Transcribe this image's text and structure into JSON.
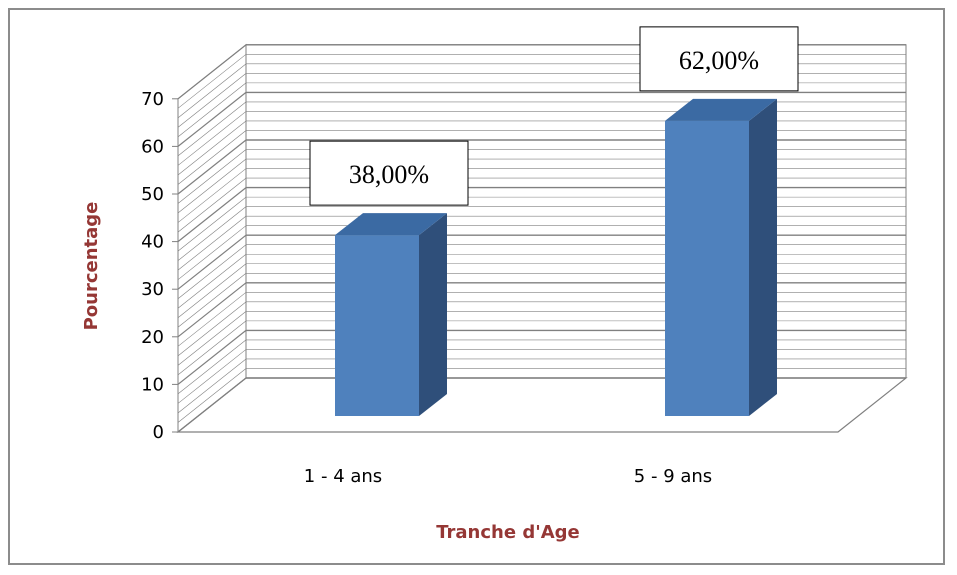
{
  "chart_data": {
    "type": "bar",
    "categories": [
      "1 - 4 ans",
      "5 - 9 ans"
    ],
    "values": [
      38,
      62
    ],
    "data_labels": [
      "38,00%",
      "62,00%"
    ],
    "xlabel": "Tranche d'Age",
    "ylabel": "Pourcentage",
    "ylim": [
      0,
      70
    ],
    "yticks": [
      0,
      10,
      20,
      30,
      40,
      50,
      60,
      70
    ],
    "grid": true,
    "legend": "none",
    "style": "3d-column"
  },
  "colors": {
    "bar_front": "#4f81bd",
    "bar_side": "#2f4f7a",
    "bar_top": "#3b6aa3",
    "axis_title": "#953735",
    "grid": "#808080",
    "frame": "#8c8c8c"
  }
}
